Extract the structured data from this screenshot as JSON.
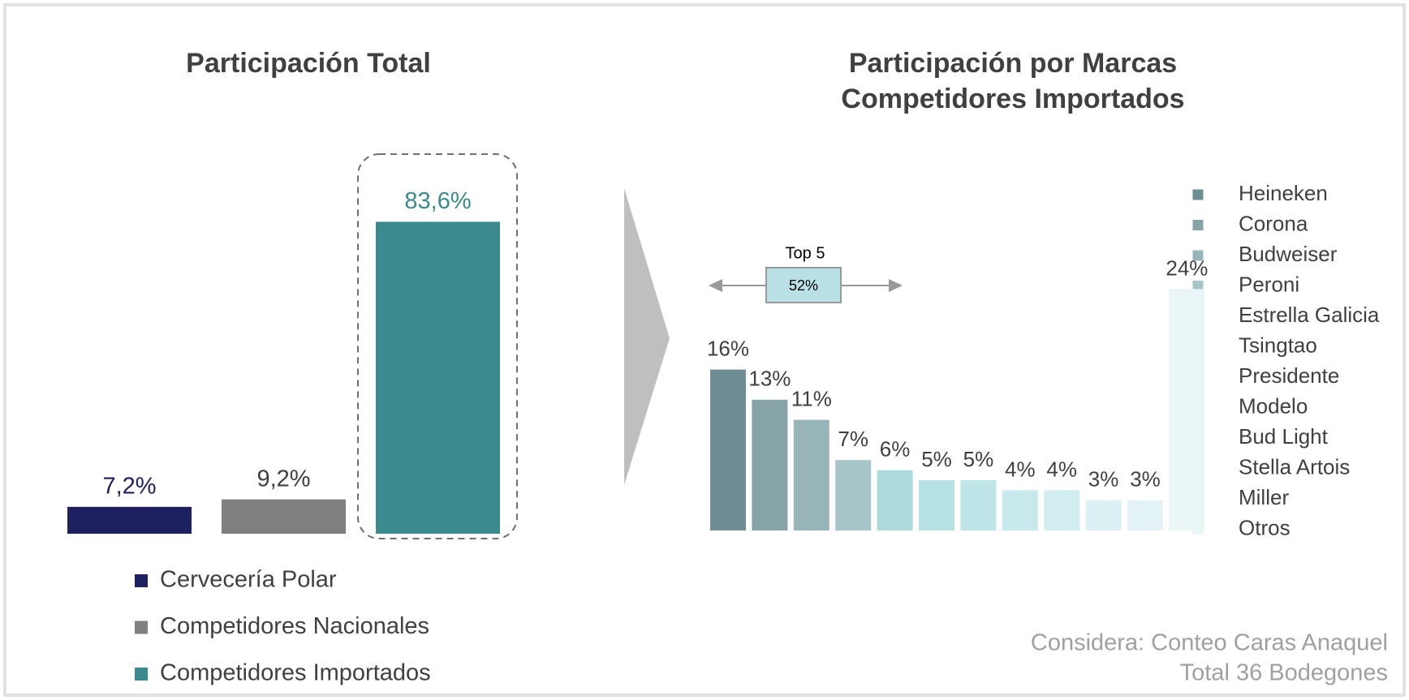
{
  "chart_data": [
    {
      "type": "bar",
      "title": "Participación Total",
      "categories": [
        "Cervecería Polar",
        "Competidores Nacionales",
        "Competidores Importados"
      ],
      "values": [
        7.2,
        9.2,
        83.6
      ],
      "value_labels": [
        "7,2%",
        "9,2%",
        "83,6%"
      ],
      "colors": [
        "#1f2060",
        "#808080",
        "#3a8a90"
      ],
      "label_colors": [
        "#1f2060",
        "#404040",
        "#3a8a90"
      ]
    },
    {
      "type": "bar",
      "title": [
        "Participación por Marcas",
        "Competidores Importados"
      ],
      "categories": [
        "Heineken",
        "Corona",
        "Budweiser",
        "Peroni",
        "Estrella Galicia",
        "Tsingtao",
        "Presidente",
        "Modelo",
        "Bud Light",
        "Stella Artois",
        "Miller",
        "Otros"
      ],
      "values": [
        16,
        13,
        11,
        7,
        6,
        5,
        5,
        4,
        4,
        3,
        3,
        24
      ],
      "value_labels": [
        "16%",
        "13%",
        "11%",
        "7%",
        "6%",
        "5%",
        "5%",
        "4%",
        "4%",
        "3%",
        "3%",
        "24%"
      ],
      "colors": [
        "#6e8e93",
        "#86a3a7",
        "#97b4b8",
        "#a5c5c8",
        "#addadd",
        "#b6e2e5",
        "#bee5e8",
        "#c8e9ec",
        "#d2edf0",
        "#dcf1f3",
        "#e3f3f5",
        "#eaf5f7"
      ],
      "annotation": {
        "title": "Top 5",
        "value": 52,
        "value_label": "52%"
      }
    }
  ],
  "notes": [
    "Considera: Conteo Caras Anaquel",
    "Total 36 Bodegones"
  ]
}
